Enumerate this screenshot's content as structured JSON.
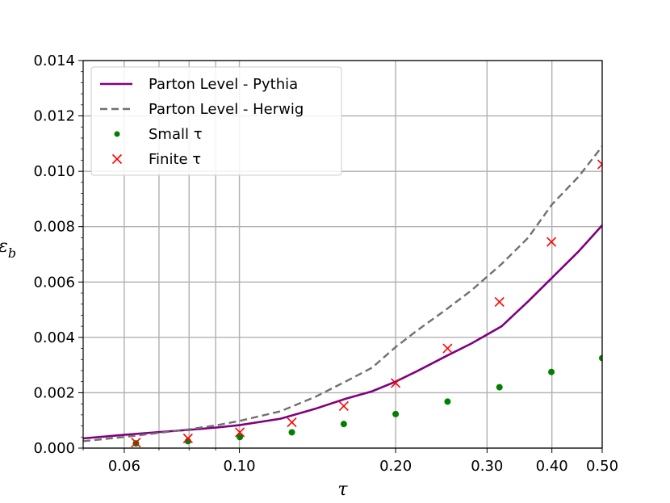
{
  "chart_data": {
    "type": "line",
    "xlabel": "τ",
    "ylabel": "ε",
    "ylabel_subscript": "b",
    "xscale": "log",
    "xlim": [
      0.05,
      0.5
    ],
    "ylim": [
      0,
      0.014
    ],
    "grid": true,
    "legend_position": "upper-left",
    "x_ticks": [
      0.06,
      0.1,
      0.2,
      0.3,
      0.4,
      0.5
    ],
    "x_tick_labels": [
      "0.06",
      "0.10",
      "0.20",
      "0.30",
      "0.40",
      "0.50"
    ],
    "y_ticks": [
      0,
      0.002,
      0.004,
      0.006,
      0.008,
      0.01,
      0.012,
      0.014
    ],
    "y_tick_labels": [
      "0.000",
      "0.002",
      "0.004",
      "0.006",
      "0.008",
      "0.010",
      "0.012",
      "0.014"
    ],
    "series": [
      {
        "name": "Parton Level - Pythia",
        "style": "line",
        "color": "#800080",
        "x": [
          0.05,
          0.06,
          0.07,
          0.08,
          0.09,
          0.1,
          0.12,
          0.14,
          0.16,
          0.18,
          0.2,
          0.22,
          0.25,
          0.28,
          0.32,
          0.36,
          0.4,
          0.45,
          0.5
        ],
        "y": [
          0.00035,
          0.00048,
          0.00058,
          0.00066,
          0.00074,
          0.00083,
          0.00106,
          0.00142,
          0.00178,
          0.00205,
          0.0024,
          0.00278,
          0.00332,
          0.00378,
          0.0044,
          0.0053,
          0.00615,
          0.0071,
          0.00805
        ]
      },
      {
        "name": "Parton Level - Herwig",
        "style": "dashed",
        "color": "#707070",
        "x": [
          0.05,
          0.06,
          0.07,
          0.08,
          0.09,
          0.1,
          0.12,
          0.14,
          0.16,
          0.18,
          0.2,
          0.22,
          0.25,
          0.28,
          0.32,
          0.36,
          0.4,
          0.45,
          0.5
        ],
        "y": [
          0.00025,
          0.0004,
          0.00055,
          0.00068,
          0.00082,
          0.00098,
          0.00133,
          0.00185,
          0.0024,
          0.0029,
          0.00365,
          0.00425,
          0.005,
          0.0057,
          0.00665,
          0.0076,
          0.0088,
          0.0098,
          0.0109
        ]
      },
      {
        "name": "Small τ",
        "style": "dots",
        "color": "#008000",
        "x": [
          0.0632,
          0.0796,
          0.1002,
          0.1262,
          0.1589,
          0.2,
          0.2518,
          0.317,
          0.3991,
          0.5
        ],
        "y": [
          0.00017,
          0.00025,
          0.0004,
          0.00057,
          0.00087,
          0.00123,
          0.00168,
          0.0022,
          0.00275,
          0.00325
        ]
      },
      {
        "name": "Finite τ",
        "style": "x",
        "color": "#ff0000",
        "x": [
          0.0632,
          0.0796,
          0.1002,
          0.1262,
          0.1589,
          0.2,
          0.2518,
          0.317,
          0.3991,
          0.5
        ],
        "y": [
          0.0002,
          0.00035,
          0.00057,
          0.00093,
          0.00152,
          0.00235,
          0.0036,
          0.00528,
          0.00745,
          0.01025
        ]
      }
    ],
    "legend": [
      {
        "label": "Parton Level - Pythia"
      },
      {
        "label": "Parton Level - Herwig"
      },
      {
        "label": "Small τ"
      },
      {
        "label": "Finite τ"
      }
    ]
  }
}
